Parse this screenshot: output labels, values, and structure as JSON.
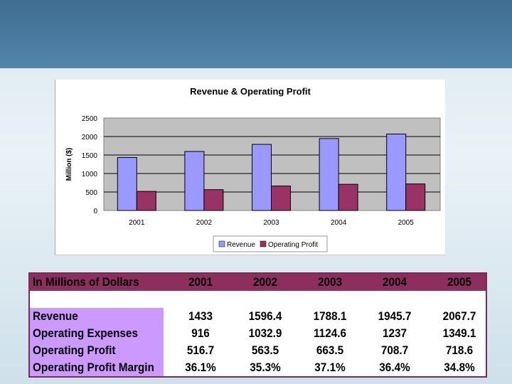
{
  "colors": {
    "header_band": "#4a7aa0",
    "revenue_bar": "#9999ff",
    "profit_bar": "#993366",
    "plot_bg": "#c0c0c0",
    "table_header": "#8c2f5f",
    "label_highlight": "#cc99ff"
  },
  "chart_data": {
    "type": "bar",
    "title": "Revenue & Operating Profit",
    "xlabel": "",
    "ylabel": "Million ($)",
    "ylim": [
      0,
      2500
    ],
    "yticks": [
      "0",
      "500",
      "1000",
      "1500",
      "2000",
      "2500"
    ],
    "categories": [
      "2001",
      "2002",
      "2003",
      "2004",
      "2005"
    ],
    "series": [
      {
        "name": "Revenue",
        "values": [
          1433,
          1596.4,
          1788.1,
          1945.7,
          2067.7
        ]
      },
      {
        "name": "Operating Profit",
        "values": [
          516.7,
          563.5,
          663.5,
          708.7,
          718.6
        ]
      }
    ],
    "grid": true,
    "legend": "bottom"
  },
  "table": {
    "header_label": "In Millions of Dollars",
    "years": [
      "2001",
      "2002",
      "2003",
      "2004",
      "2005"
    ],
    "rows": [
      {
        "label": "Revenue",
        "values": [
          "1433",
          "1596.4",
          "1788.1",
          "1945.7",
          "2067.7"
        ]
      },
      {
        "label": "Operating Expenses",
        "values": [
          "916",
          "1032.9",
          "1124.6",
          "1237",
          "1349.1"
        ]
      },
      {
        "label": "Operating Profit",
        "values": [
          "516.7",
          "563.5",
          "663.5",
          "708.7",
          "718.6"
        ]
      },
      {
        "label": "Operating Profit Margin",
        "values": [
          "36.1%",
          "35.3%",
          "37.1%",
          "36.4%",
          "34.8%"
        ]
      }
    ]
  }
}
